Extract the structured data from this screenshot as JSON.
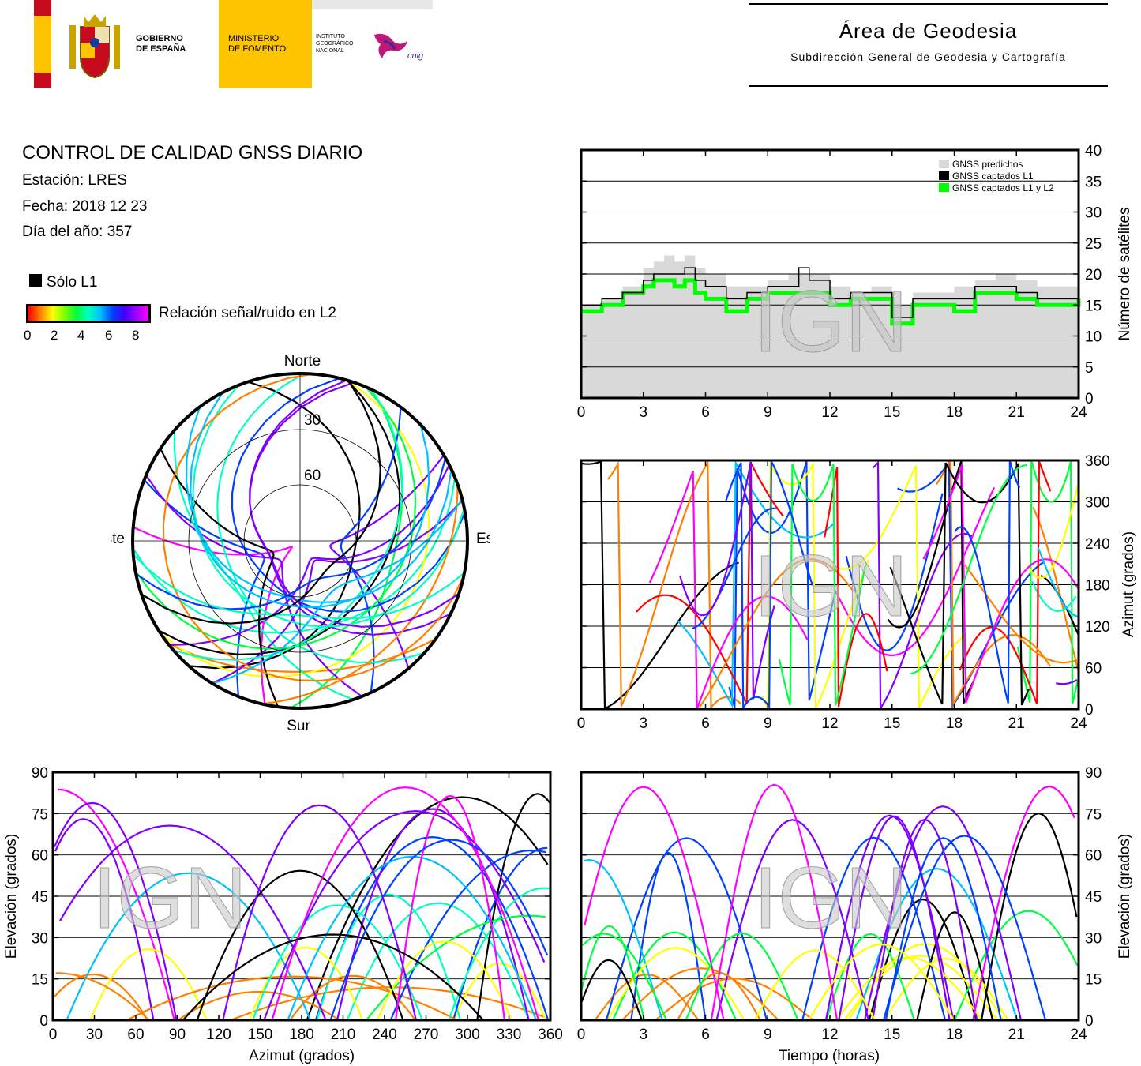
{
  "header": {
    "gov_line1": "GOBIERNO",
    "gov_line2": "DE ESPAÑA",
    "min_line1": "MINISTERIO",
    "min_line2": "DE FOMENTO",
    "ign_line1": "INSTITUTO",
    "ign_line2": "GEOGRÁFICO",
    "ign_line3": "NACIONAL",
    "cnig": "cnig",
    "area_title": "Área de Geodesia",
    "area_subtitle": "Subdirección General de Geodesia y Cartografía"
  },
  "info": {
    "title": "CONTROL DE CALIDAD GNSS DIARIO",
    "station": "Estación: LRES",
    "date": "Fecha: 2018 12 23",
    "doy": "Día del año: 357"
  },
  "legend": {
    "l1_only": "Sólo L1",
    "snr_label": "Relación señal/ruido en L2",
    "snr_ticks": [
      "0",
      "2",
      "4",
      "6",
      "8"
    ]
  },
  "watermark": "IGN",
  "colors": {
    "predicted": "#d9d9d9",
    "l1": "#000000",
    "l1l2": "#00ff00",
    "snr_scale": [
      "#ff0000",
      "#ff8000",
      "#ffff00",
      "#00ff40",
      "#00ffc0",
      "#00c0ff",
      "#0040ff",
      "#8000ff",
      "#ff00ff"
    ]
  },
  "chart_data": [
    {
      "id": "skyplot",
      "type": "scatter",
      "labels": {
        "north": "Norte",
        "south": "Sur",
        "east": "Este",
        "west": "Oeste"
      },
      "elevation_rings": [
        "30",
        "60"
      ]
    },
    {
      "id": "satcount",
      "type": "line",
      "ylabel": "Número de satélites",
      "xlim": [
        0,
        24
      ],
      "ylim": [
        0,
        40
      ],
      "xticks": [
        "0",
        "3",
        "6",
        "9",
        "12",
        "15",
        "18",
        "21",
        "24"
      ],
      "yticks": [
        "0",
        "5",
        "10",
        "15",
        "20",
        "25",
        "30",
        "35",
        "40"
      ],
      "legend_position": "top-right",
      "series": [
        {
          "name": "GNSS predichos",
          "x": [
            0,
            1,
            2,
            3,
            3.5,
            4,
            4.5,
            5,
            5.5,
            6,
            7,
            8,
            9,
            10,
            11,
            12,
            13,
            14,
            15,
            16,
            17,
            18,
            19,
            20,
            21,
            22,
            23,
            24
          ],
          "values": [
            15,
            16,
            18,
            21,
            22,
            23,
            22,
            23,
            21,
            20,
            18,
            18,
            19,
            20,
            20,
            18,
            17,
            18,
            15,
            17,
            17,
            18,
            19,
            20,
            19,
            18,
            18,
            18
          ]
        },
        {
          "name": "GNSS captados L1",
          "x": [
            0,
            1,
            2,
            3,
            3.5,
            4,
            4.5,
            5,
            5.5,
            6,
            7,
            8,
            9,
            10,
            10.5,
            11,
            12,
            13,
            14,
            15,
            16,
            17,
            18,
            19,
            20,
            21,
            22,
            23,
            24
          ],
          "values": [
            15,
            16,
            17,
            19,
            20,
            20,
            20,
            21,
            19,
            18,
            16,
            17,
            18,
            18,
            21,
            19,
            16,
            17,
            17,
            13,
            16,
            16,
            16,
            18,
            18,
            17,
            16,
            16,
            17
          ]
        },
        {
          "name": "GNSS captados L1 y L2",
          "x": [
            0,
            1,
            2,
            3,
            3.5,
            4,
            4.5,
            5,
            5.5,
            6,
            7,
            8,
            9,
            10,
            11,
            12,
            13,
            14,
            15,
            16,
            17,
            18,
            19,
            20,
            21,
            22,
            23,
            24
          ],
          "values": [
            14,
            15,
            17,
            18,
            19,
            19,
            18,
            19,
            17,
            16,
            14,
            16,
            17,
            17,
            17,
            15,
            16,
            16,
            12,
            15,
            15,
            14,
            17,
            17,
            16,
            15,
            15,
            16
          ]
        }
      ]
    },
    {
      "id": "azimuth_time",
      "type": "scatter",
      "ylabel": "Azimut (grados)",
      "xlim": [
        0,
        24
      ],
      "ylim": [
        0,
        360
      ],
      "xticks": [
        "0",
        "3",
        "6",
        "9",
        "12",
        "15",
        "18",
        "21",
        "24"
      ],
      "yticks": [
        "0",
        "60",
        "120",
        "180",
        "240",
        "300",
        "360"
      ]
    },
    {
      "id": "elev_azimuth",
      "type": "scatter",
      "xlabel": "Azimut (grados)",
      "ylabel": "Elevación (grados)",
      "xlim": [
        0,
        360
      ],
      "ylim": [
        0,
        90
      ],
      "xticks": [
        "0",
        "30",
        "60",
        "90",
        "120",
        "150",
        "180",
        "210",
        "240",
        "270",
        "300",
        "330",
        "360"
      ],
      "yticks": [
        "0",
        "15",
        "30",
        "45",
        "60",
        "75",
        "90"
      ]
    },
    {
      "id": "elev_time",
      "type": "scatter",
      "xlabel": "Tiempo (horas)",
      "ylabel": "Elevación (grados)",
      "xlim": [
        0,
        24
      ],
      "ylim": [
        0,
        90
      ],
      "xticks": [
        "0",
        "3",
        "6",
        "9",
        "12",
        "15",
        "18",
        "21",
        "24"
      ],
      "yticks": [
        "0",
        "15",
        "30",
        "45",
        "60",
        "75",
        "90"
      ]
    }
  ]
}
